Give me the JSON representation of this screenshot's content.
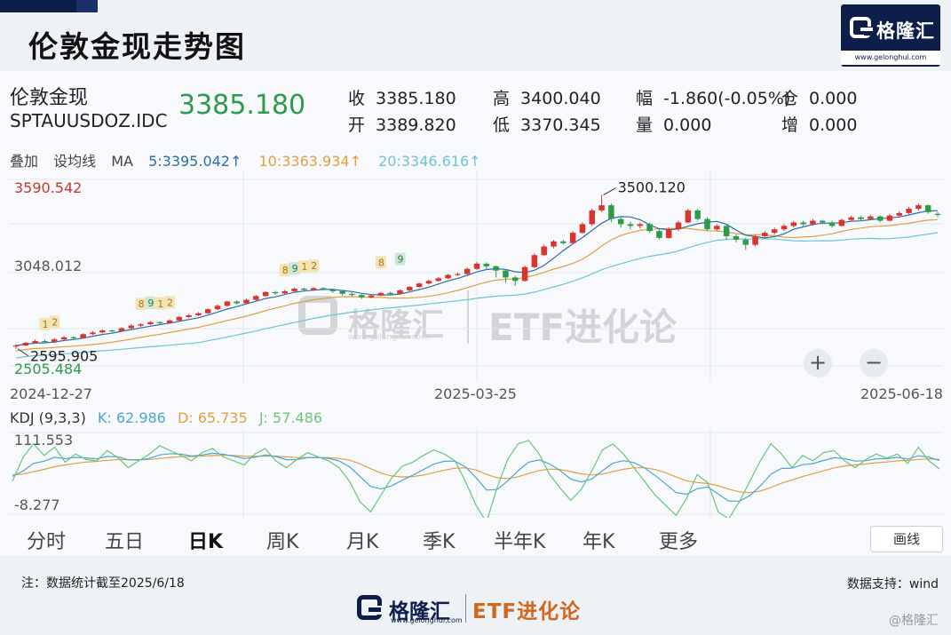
{
  "page": {
    "title": "伦敦金现走势图",
    "brand_name": "格隆汇",
    "brand_url": "www.gelonghui.com"
  },
  "quote": {
    "name": "伦敦金现",
    "code": "SPTAUUSDOZ.IDC",
    "price": "3385.180",
    "fields": [
      {
        "label": "收",
        "value": "3385.180"
      },
      {
        "label": "开",
        "value": "3389.820"
      },
      {
        "label": "高",
        "value": "3400.040"
      },
      {
        "label": "低",
        "value": "3370.345"
      },
      {
        "label": "幅",
        "value": "-1.860(-0.05%)"
      },
      {
        "label": "量",
        "value": "0.000"
      },
      {
        "label": "仓",
        "value": "0.000"
      },
      {
        "label": "增",
        "value": "0.000"
      }
    ]
  },
  "ma_bar": {
    "overlay": "叠加",
    "set_ma": "设均线",
    "ma": "MA",
    "ma5": "5:3395.042↑",
    "ma10": "10:3363.934↑",
    "ma20": "20:3346.616↑"
  },
  "colors": {
    "up": "#d9352c",
    "down": "#2e9b4a",
    "ma5": "#2b6ea8",
    "ma10": "#e0a040",
    "ma20": "#6ec4d6",
    "k": "#4aa8d0",
    "d": "#e0a040",
    "j": "#6cc47a"
  },
  "chart_data": [
    {
      "type": "candlestick",
      "x_start": "2024-12-27",
      "x_end": "2025-06-18",
      "x_ticks": [
        "2024-12-27",
        "2025-03-25",
        "2025-06-18"
      ],
      "y_labels": [
        "3590.542",
        "3048.012",
        "2505.484"
      ],
      "ylim": [
        2505.484,
        3590.542
      ],
      "annotations": {
        "high_label": "3500.120",
        "low_label": "2595.905",
        "badges": [
          "1",
          "2",
          "8",
          "9",
          "1",
          "2",
          "8",
          "9",
          "1",
          "2",
          "8",
          "9"
        ]
      },
      "candles": [
        [
          2620,
          2624,
          2605,
          2632
        ],
        [
          2624,
          2640,
          2620,
          2645
        ],
        [
          2640,
          2650,
          2635,
          2660
        ],
        [
          2650,
          2645,
          2638,
          2658
        ],
        [
          2645,
          2660,
          2640,
          2668
        ],
        [
          2660,
          2672,
          2655,
          2680
        ],
        [
          2672,
          2668,
          2660,
          2678
        ],
        [
          2668,
          2690,
          2664,
          2695
        ],
        [
          2690,
          2700,
          2685,
          2708
        ],
        [
          2700,
          2712,
          2695,
          2718
        ],
        [
          2712,
          2708,
          2700,
          2716
        ],
        [
          2708,
          2725,
          2704,
          2730
        ],
        [
          2725,
          2740,
          2720,
          2748
        ],
        [
          2740,
          2748,
          2732,
          2755
        ],
        [
          2748,
          2760,
          2742,
          2766
        ],
        [
          2760,
          2755,
          2748,
          2765
        ],
        [
          2755,
          2770,
          2750,
          2776
        ],
        [
          2770,
          2790,
          2765,
          2796
        ],
        [
          2790,
          2800,
          2785,
          2808
        ],
        [
          2800,
          2812,
          2795,
          2818
        ],
        [
          2812,
          2835,
          2808,
          2840
        ],
        [
          2835,
          2855,
          2830,
          2862
        ],
        [
          2855,
          2880,
          2850,
          2885
        ],
        [
          2880,
          2870,
          2862,
          2888
        ],
        [
          2870,
          2890,
          2866,
          2896
        ],
        [
          2890,
          2912,
          2885,
          2918
        ],
        [
          2912,
          2935,
          2908,
          2940
        ],
        [
          2935,
          2928,
          2920,
          2942
        ],
        [
          2928,
          2940,
          2922,
          2948
        ],
        [
          2940,
          2955,
          2935,
          2962
        ],
        [
          2955,
          2948,
          2940,
          2960
        ],
        [
          2948,
          2958,
          2944,
          2964
        ],
        [
          2958,
          2950,
          2945,
          2963
        ],
        [
          2950,
          2940,
          2930,
          2955
        ],
        [
          2940,
          2925,
          2915,
          2945
        ],
        [
          2925,
          2918,
          2910,
          2932
        ],
        [
          2918,
          2905,
          2895,
          2925
        ],
        [
          2905,
          2915,
          2898,
          2922
        ],
        [
          2915,
          2930,
          2910,
          2936
        ],
        [
          2930,
          2925,
          2915,
          2938
        ],
        [
          2925,
          2945,
          2920,
          2950
        ],
        [
          2945,
          2965,
          2940,
          2970
        ],
        [
          2965,
          2985,
          2960,
          2990
        ],
        [
          2985,
          3000,
          2978,
          3008
        ],
        [
          3000,
          3015,
          2995,
          3022
        ],
        [
          3015,
          3035,
          3010,
          3040
        ],
        [
          3035,
          3040,
          3028,
          3048
        ],
        [
          3040,
          3070,
          3035,
          3078
        ],
        [
          3070,
          3100,
          3065,
          3110
        ],
        [
          3100,
          3085,
          3070,
          3108
        ],
        [
          3085,
          3060,
          3020,
          3090
        ],
        [
          3060,
          3020,
          2990,
          3065
        ],
        [
          3020,
          3000,
          2970,
          3030
        ],
        [
          3000,
          3080,
          2995,
          3090
        ],
        [
          3080,
          3150,
          3075,
          3160
        ],
        [
          3150,
          3200,
          3145,
          3210
        ],
        [
          3200,
          3230,
          3190,
          3238
        ],
        [
          3230,
          3220,
          3210,
          3240
        ],
        [
          3220,
          3280,
          3215,
          3290
        ],
        [
          3280,
          3330,
          3275,
          3340
        ],
        [
          3330,
          3410,
          3320,
          3420
        ],
        [
          3410,
          3440,
          3400,
          3500
        ],
        [
          3440,
          3360,
          3340,
          3450
        ],
        [
          3360,
          3330,
          3310,
          3370
        ],
        [
          3330,
          3320,
          3300,
          3345
        ],
        [
          3320,
          3330,
          3305,
          3340
        ],
        [
          3330,
          3290,
          3280,
          3340
        ],
        [
          3290,
          3250,
          3240,
          3300
        ],
        [
          3250,
          3300,
          3245,
          3310
        ],
        [
          3300,
          3340,
          3290,
          3350
        ],
        [
          3340,
          3410,
          3335,
          3420
        ],
        [
          3410,
          3360,
          3350,
          3420
        ],
        [
          3360,
          3300,
          3290,
          3370
        ],
        [
          3300,
          3320,
          3290,
          3330
        ],
        [
          3320,
          3260,
          3240,
          3330
        ],
        [
          3260,
          3240,
          3225,
          3270
        ],
        [
          3240,
          3210,
          3180,
          3250
        ],
        [
          3210,
          3260,
          3200,
          3270
        ],
        [
          3260,
          3280,
          3250,
          3290
        ],
        [
          3280,
          3300,
          3270,
          3310
        ],
        [
          3300,
          3320,
          3290,
          3330
        ],
        [
          3320,
          3340,
          3310,
          3350
        ],
        [
          3340,
          3330,
          3320,
          3350
        ],
        [
          3330,
          3350,
          3322,
          3360
        ],
        [
          3350,
          3340,
          3330,
          3355
        ],
        [
          3340,
          3320,
          3310,
          3350
        ],
        [
          3320,
          3355,
          3315,
          3362
        ],
        [
          3355,
          3370,
          3345,
          3380
        ],
        [
          3370,
          3360,
          3350,
          3378
        ],
        [
          3360,
          3375,
          3352,
          3385
        ],
        [
          3375,
          3350,
          3340,
          3380
        ],
        [
          3350,
          3380,
          3345,
          3390
        ],
        [
          3380,
          3395,
          3370,
          3405
        ],
        [
          3395,
          3420,
          3388,
          3430
        ],
        [
          3420,
          3440,
          3410,
          3450
        ],
        [
          3440,
          3400,
          3390,
          3445
        ],
        [
          3389.82,
          3385.18,
          3370.345,
          3400.04
        ]
      ]
    },
    {
      "type": "line",
      "title": "KDJ (9,3,3)",
      "y_labels": [
        "111.553",
        "-8.277"
      ],
      "ylim": [
        -8.277,
        111.553
      ],
      "series": [
        {
          "name": "K",
          "latest": "62.986"
        },
        {
          "name": "D",
          "latest": "65.735"
        },
        {
          "name": "J",
          "latest": "57.486"
        }
      ]
    }
  ],
  "zoom": {
    "plus": "+",
    "minus": "−"
  },
  "tabs": [
    "分时",
    "五日",
    "日K",
    "周K",
    "月K",
    "季K",
    "半年K",
    "年K",
    "更多"
  ],
  "active_tab": "日K",
  "draw_button": "画线",
  "footer": {
    "note": "注：数据统计截至2025/6/18",
    "source": "数据支持：wind",
    "logo_name": "格隆汇",
    "logo_tag": "ETF进化论",
    "logo_url": "www.gelonghui.com",
    "corner": "@格隆汇"
  }
}
